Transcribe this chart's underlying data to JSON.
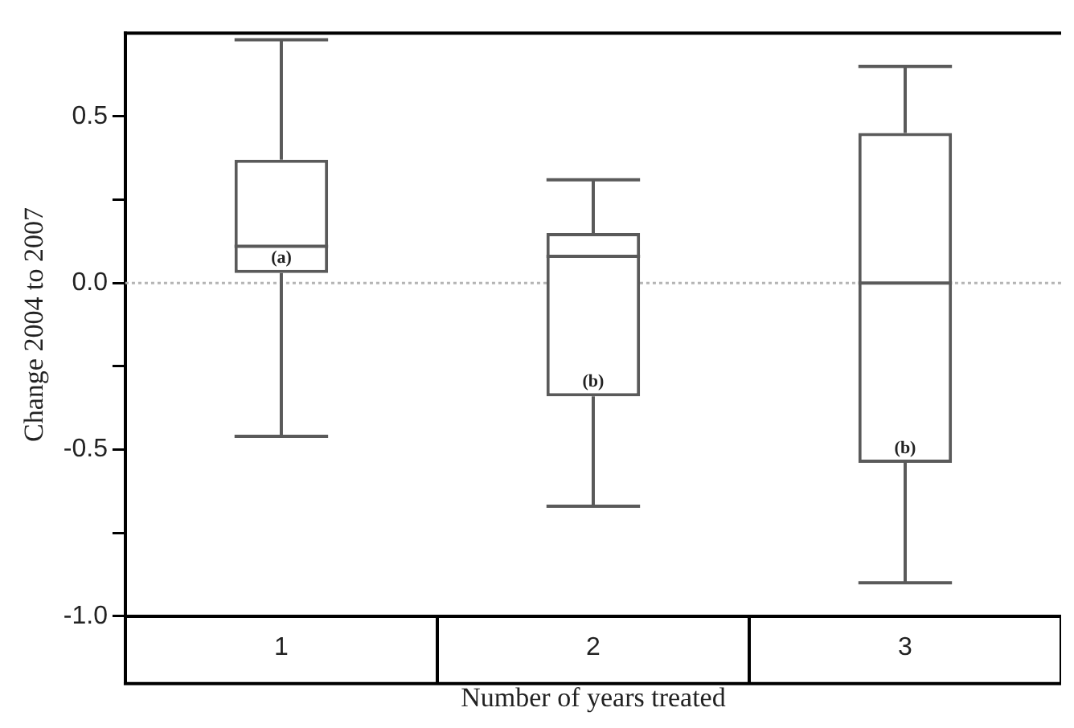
{
  "chart_data": {
    "type": "box",
    "xlabel": "Number of years treated",
    "ylabel": "Change 2004 to 2007",
    "categories": [
      "1",
      "2",
      "3"
    ],
    "color": "#5a5a5a",
    "boxes": [
      {
        "low": -0.46,
        "q1": 0.03,
        "median": 0.11,
        "q3": 0.37,
        "high": 0.73
      },
      {
        "low": -0.67,
        "q1": -0.34,
        "median": 0.08,
        "q3": 0.15,
        "high": 0.31
      },
      {
        "low": -0.9,
        "q1": -0.54,
        "median": 0.0,
        "q3": 0.45,
        "high": 0.65
      }
    ],
    "ylim": [
      -1,
      0.75
    ],
    "yticks": [
      {
        "value": -1,
        "label": "-1.0"
      },
      {
        "value": -0.75,
        "label": null
      },
      -0.5,
      {
        "value": -0.25,
        "label": null
      },
      {
        "value": 0,
        "label": "0.0"
      },
      {
        "value": 0.25,
        "label": null
      },
      0.5
    ],
    "ref_lines": [
      {
        "axis": "y",
        "value": 0,
        "color": "#b4b4b4",
        "line_style": "dotted"
      }
    ],
    "annotations": [
      "(a)",
      "(b)",
      "(b)"
    ],
    "grid": false,
    "legend": false
  }
}
